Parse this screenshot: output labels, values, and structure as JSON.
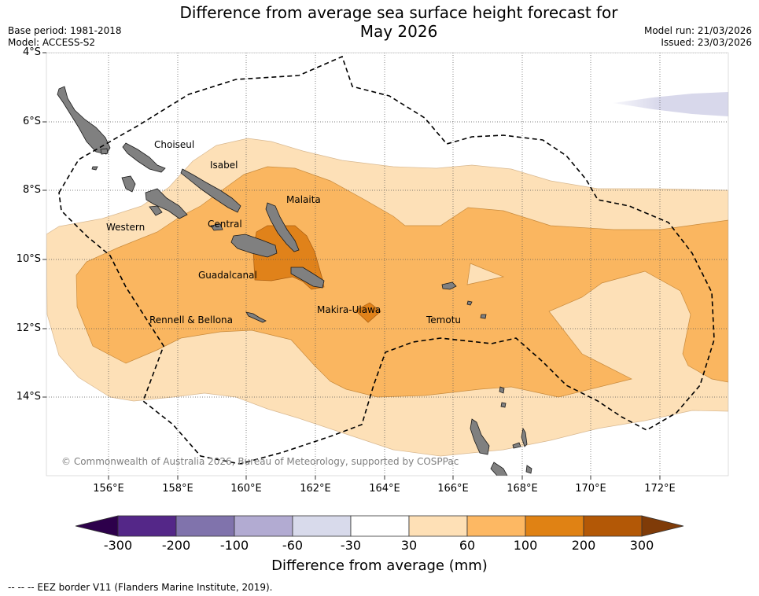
{
  "header": {
    "title_line1": "Difference from average sea surface height forecast for",
    "title_line2": "May 2026",
    "base_period": "Base period: 1981-2018",
    "model": "Model: ACCESS-S2",
    "model_run": "Model run: 21/03/2026",
    "issued": "Issued: 23/03/2026"
  },
  "map": {
    "lat_labels": [
      "4°S",
      "6°S",
      "8°S",
      "10°S",
      "12°S",
      "14°S"
    ],
    "lon_labels": [
      "156°E",
      "158°E",
      "160°E",
      "162°E",
      "164°E",
      "166°E",
      "168°E",
      "170°E",
      "172°E"
    ],
    "places": [
      "Choiseul",
      "Isabel",
      "Malaita",
      "Western",
      "Central",
      "Guadalcanal",
      "Makira-Ulawa",
      "Rennell & Bellona",
      "Temotu"
    ],
    "copyright": "© Commonwealth of Australia 2026, Bureau of Meteorology, supported by COSPPac",
    "colors": {
      "land": "#808080",
      "c30_60": "#fde0b7",
      "c60_100": "#fab660",
      "c100_200": "#e0821a",
      "cneg60_30": "#d8d8eb"
    }
  },
  "colorbar": {
    "ticks": [
      "-300",
      "-200",
      "-100",
      "-60",
      "-30",
      "30",
      "60",
      "100",
      "200",
      "300"
    ],
    "colors": [
      "#2d004b",
      "#542788",
      "#8073ac",
      "#b2abd2",
      "#d8daeb",
      "#ffffff",
      "#fee0b6",
      "#fdb863",
      "#e08214",
      "#b35806",
      "#7f3b08"
    ],
    "label": "Difference from average (mm)"
  },
  "footnote": "--  --  -- EEZ border V11 (Flanders Marine Institute, 2019)."
}
